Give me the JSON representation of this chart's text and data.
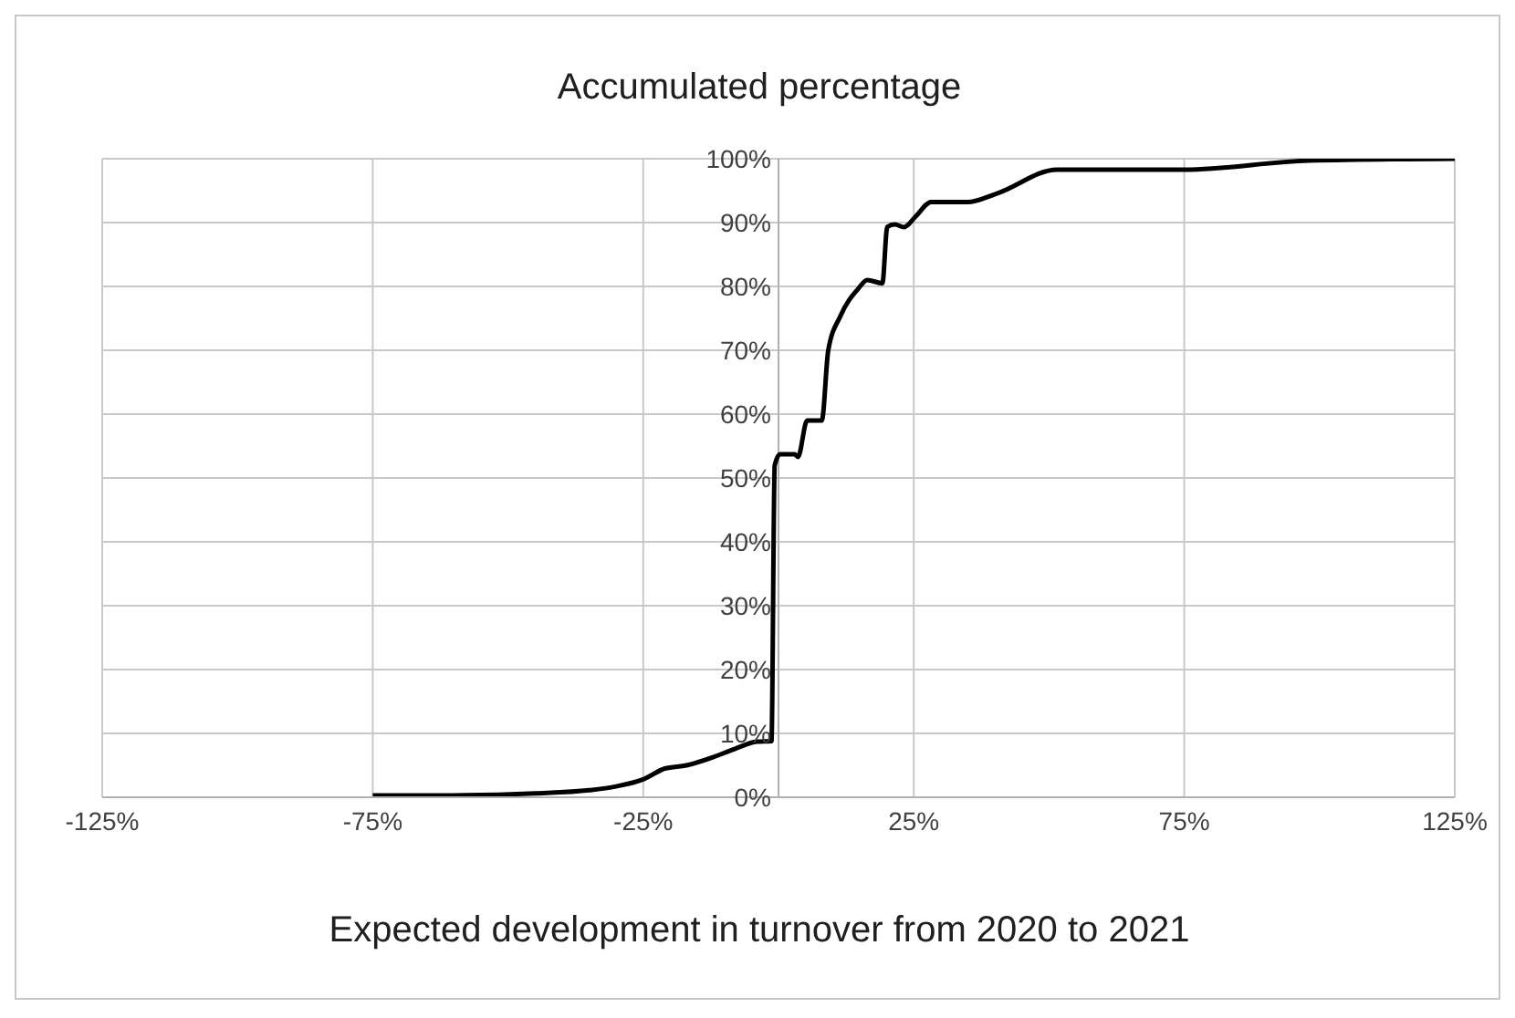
{
  "chart_data": {
    "type": "line",
    "title": "Accumulated percentage",
    "xlabel": "Expected development in turnover from 2020 to 2021",
    "x": [
      -75,
      -60,
      -45,
      -35,
      -30,
      -25,
      -21,
      -17,
      -12,
      -8,
      -4,
      -1.3,
      -0.7,
      0.3,
      3,
      3.6,
      5.3,
      8,
      9.2,
      11.4,
      14.8,
      16.4,
      19.2,
      20.1,
      21.5,
      23.2,
      25.4,
      28.2,
      34.9,
      40.5,
      51.5,
      75,
      98,
      125
    ],
    "series": [
      {
        "color": "#000000",
        "values": [
          0.3,
          0.3,
          0.6,
          1.1,
          1.7,
          2.8,
          4.5,
          5,
          6.3,
          7.6,
          8.7,
          8.8,
          52,
          53.7,
          53.7,
          53.3,
          59,
          59,
          70,
          75.3,
          79.7,
          81,
          80.5,
          89.3,
          89.7,
          89.3,
          91,
          93.2,
          93.2,
          94.6,
          98.3,
          98.3,
          99.7,
          100
        ]
      }
    ],
    "xlim": [
      -125,
      125
    ],
    "xticks": [
      {
        "value": -125,
        "label": "-125%"
      },
      {
        "value": -75,
        "label": "-75%"
      },
      {
        "value": -25,
        "label": "-25%"
      },
      {
        "value": 25,
        "label": "25%"
      },
      {
        "value": 75,
        "label": "75%"
      },
      {
        "value": 125,
        "label": "125%"
      }
    ],
    "ylim": [
      0,
      100
    ],
    "yticks": [
      {
        "value": 0,
        "label": "0%"
      },
      {
        "value": 10,
        "label": "10%"
      },
      {
        "value": 20,
        "label": "20%"
      },
      {
        "value": 30,
        "label": "30%"
      },
      {
        "value": 40,
        "label": "40%"
      },
      {
        "value": 50,
        "label": "50%"
      },
      {
        "value": 60,
        "label": "60%"
      },
      {
        "value": 70,
        "label": "70%"
      },
      {
        "value": 80,
        "label": "80%"
      },
      {
        "value": 90,
        "label": "90%"
      },
      {
        "value": 100,
        "label": "100%"
      }
    ],
    "grid": true,
    "marker": "none",
    "line_style": "solid"
  }
}
